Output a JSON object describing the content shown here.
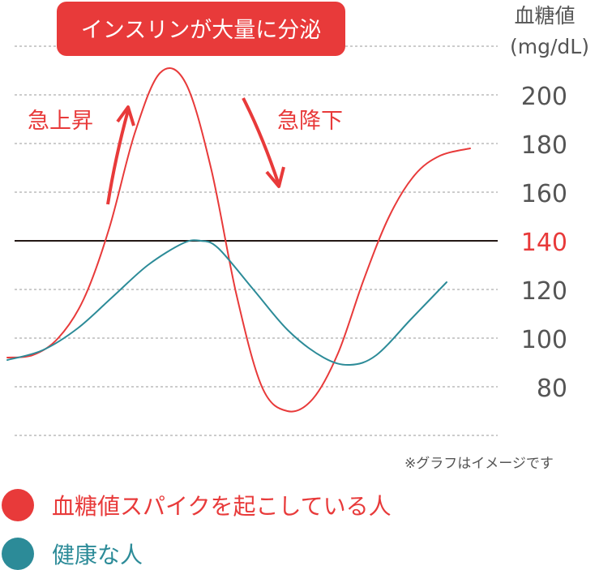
{
  "callout": "インスリンが大量に分泌",
  "annotations": {
    "rise": "急上昇",
    "fall": "急降下"
  },
  "axis": {
    "title_line1": "血糖値",
    "title_line2": "(mg/dL)"
  },
  "note": "※グラフはイメージです",
  "colors": {
    "spike": "#e83a3a",
    "healthy": "#2c8b98",
    "threshold": "#231815",
    "tick": "#555555",
    "callout_bg": "#e83a3a"
  },
  "chart_data": {
    "type": "line",
    "ylabel": "血糖値 (mg/dL)",
    "yticks": [
      200,
      180,
      160,
      140,
      120,
      100,
      80
    ],
    "highlight_tick": 140,
    "threshold": 140,
    "ylim": [
      60,
      220
    ],
    "xlim": [
      0,
      1
    ],
    "grid": true,
    "series": [
      {
        "name": "血糖値スパイクを起こしている人",
        "color": "#e83a3a",
        "x": [
          0.0,
          0.055,
          0.11,
          0.165,
          0.22,
          0.275,
          0.33,
          0.385,
          0.44,
          0.495,
          0.55,
          0.605,
          0.66,
          0.715,
          0.77,
          0.825,
          0.88,
          0.935,
          1.0
        ],
        "y": [
          92,
          93,
          100,
          116,
          145,
          184,
          209,
          205,
          170,
          118,
          80,
          70,
          75,
          94,
          124,
          150,
          167,
          175,
          178
        ]
      },
      {
        "name": "健康な人",
        "color": "#2c8b98",
        "x": [
          0.0,
          0.08,
          0.16,
          0.24,
          0.32,
          0.4,
          0.44,
          0.48,
          0.56,
          0.64,
          0.72,
          0.78,
          0.84,
          0.92,
          1.0
        ],
        "y": [
          91,
          95,
          104,
          117,
          130,
          139,
          140,
          137,
          120,
          103,
          92,
          89,
          93,
          108,
          123
        ]
      }
    ]
  },
  "legend": [
    {
      "label": "血糖値スパイクを起こしている人",
      "color": "#e83a3a"
    },
    {
      "label": "健康な人",
      "color": "#2c8b98"
    }
  ]
}
